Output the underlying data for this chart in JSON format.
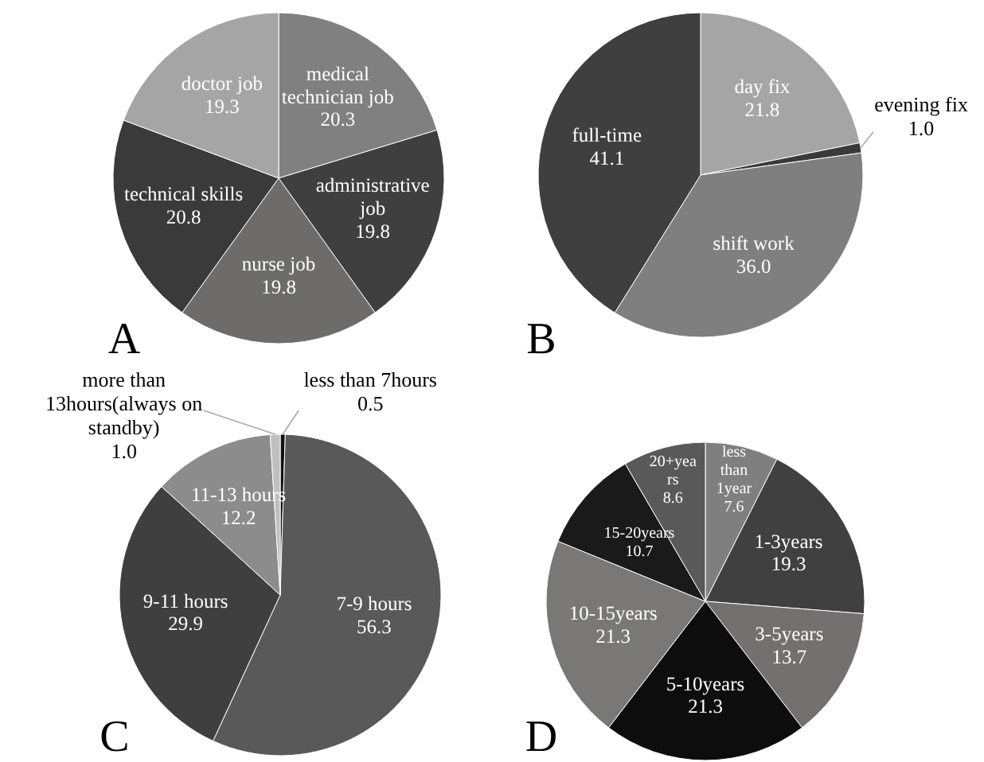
{
  "chart_data": [
    {
      "type": "pie",
      "title": "A",
      "categories": [
        "medical technician job",
        "administrative job",
        "nurse job",
        "technical skills",
        "doctor job"
      ],
      "values": [
        20.3,
        19.8,
        19.8,
        20.8,
        19.3
      ],
      "value_labels": [
        "20.3",
        "19.8",
        "19.8",
        "20.8",
        "19.3"
      ],
      "colors": [
        "#808080",
        "#3f3f3f",
        "#6e6b6b",
        "#3a3a3a",
        "#a5a5a5"
      ]
    },
    {
      "type": "pie",
      "title": "B",
      "categories": [
        "day fix",
        "evening fix",
        "shift work",
        "full-time"
      ],
      "values": [
        21.8,
        1.0,
        36.0,
        41.1
      ],
      "value_labels": [
        "21.8",
        "1.0",
        "36.0",
        "41.1"
      ],
      "colors": [
        "#a5a5a5",
        "#3a3a3a",
        "#7f7f7f",
        "#3f3f3f"
      ]
    },
    {
      "type": "pie",
      "title": "C",
      "categories": [
        "less than 7hours",
        "7-9 hours",
        "9-11 hours",
        "11-13 hours",
        "more than 13hours(always on standby)"
      ],
      "values": [
        0.5,
        56.3,
        29.9,
        12.2,
        1.0
      ],
      "value_labels": [
        "0.5",
        "56.3",
        "29.9",
        "12.2",
        "1.0"
      ],
      "colors": [
        "#111111",
        "#595959",
        "#3f3f3f",
        "#8c8c8c",
        "#bfbfbf"
      ]
    },
    {
      "type": "pie",
      "title": "D",
      "categories": [
        "less than 1year",
        "1-3years",
        "3-5years",
        "5-10years",
        "10-15years",
        "15-20years",
        "20+years"
      ],
      "values": [
        7.6,
        19.3,
        13.7,
        21.3,
        21.3,
        10.7,
        8.6
      ],
      "value_labels": [
        "7.6",
        "19.3",
        "13.7",
        "21.3",
        "21.3",
        "10.7",
        "8.6"
      ],
      "colors": [
        "#7f7f7f",
        "#404040",
        "#757070",
        "#0d0d0d",
        "#7a7777",
        "#1a1a1a",
        "#595959"
      ]
    }
  ]
}
